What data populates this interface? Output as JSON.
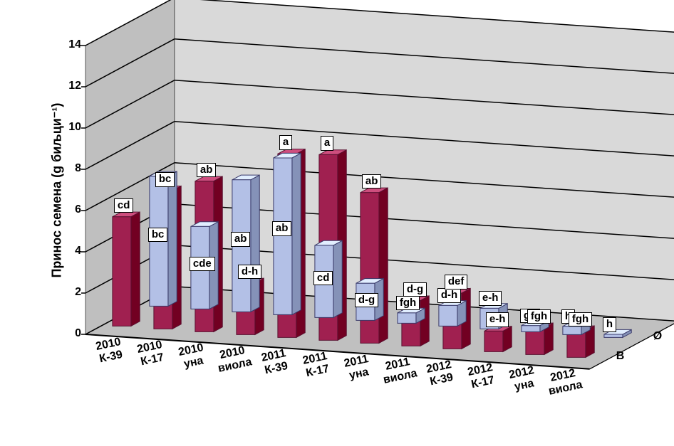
{
  "chart": {
    "type": "bar3d",
    "y_title": "Принос семена (g биљци⁻¹)",
    "ylim": [
      0,
      14
    ],
    "ytick_step": 2,
    "yticks": [
      0,
      2,
      4,
      6,
      8,
      10,
      12,
      14
    ],
    "grid_color": "#000000",
    "floor_color": "#c0c0c0",
    "wall_color": "#c0c0c0",
    "background_color": "#ffffff",
    "label_fontsize": 16,
    "tick_fontsize": 16,
    "title_fontsize": 18,
    "categories": [
      "2010 К-39",
      "2010 К-17",
      "2010 уна",
      "2010 виола",
      "2011 К-39",
      "2011 К-17",
      "2011 уна",
      "2011 виола",
      "2012 К-39",
      "2012 К-17",
      "2012 уна",
      "2012 виола"
    ],
    "series": [
      {
        "name": "Ø",
        "fill": "#b3c0e6",
        "stroke": "#3a3a6a",
        "values": [
          6.3,
          4.0,
          6.4,
          7.6,
          3.5,
          1.8,
          0.5,
          1.0,
          1.0,
          0.3,
          0.4,
          0.15
        ],
        "value_labels": [
          "bc",
          "cde",
          "ab",
          "ab",
          "cd",
          "d-g",
          "fgh",
          "d-h",
          "e-h",
          "gh",
          "h",
          "h"
        ]
      },
      {
        "name": "В",
        "fill": "#a02050",
        "stroke": "#5a1030",
        "values": [
          5.3,
          6.7,
          7.3,
          2.5,
          8.9,
          9.0,
          7.3,
          2.2,
          2.7,
          1.0,
          1.3,
          1.3
        ],
        "value_labels": [
          "cd",
          "bc",
          "ab",
          "d-h",
          "a",
          "a",
          "ab",
          "d-g",
          "def",
          "e-h",
          "fgh",
          "fgh"
        ]
      }
    ]
  }
}
